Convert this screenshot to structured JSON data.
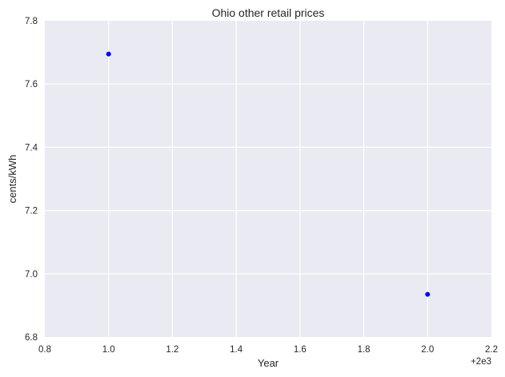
{
  "chart_data": {
    "type": "scatter",
    "title": "Ohio   other retail prices",
    "xlabel": "Year",
    "ylabel": "cents/kWh",
    "x_offset_label": "+2e3",
    "xlim": [
      0.8,
      2.2
    ],
    "ylim": [
      6.8,
      7.8
    ],
    "x_ticks": [
      0.8,
      1.0,
      1.2,
      1.4,
      1.6,
      1.8,
      2.0,
      2.2
    ],
    "x_tick_labels": [
      "0.8",
      "1.0",
      "1.2",
      "1.4",
      "1.6",
      "1.8",
      "2.0",
      "2.2"
    ],
    "y_ticks": [
      6.8,
      7.0,
      7.2,
      7.4,
      7.6,
      7.8
    ],
    "y_tick_labels": [
      "6.8",
      "7.0",
      "7.2",
      "7.4",
      "7.6",
      "7.8"
    ],
    "grid": true,
    "series": [
      {
        "x": [
          1.0,
          2.0
        ],
        "y": [
          7.695,
          6.935
        ],
        "color": "#0000ff"
      }
    ],
    "colors": {
      "plot_background": "#eaeaf2",
      "grid": "#ffffff",
      "text": "#262626",
      "point": "#0000ff"
    }
  }
}
